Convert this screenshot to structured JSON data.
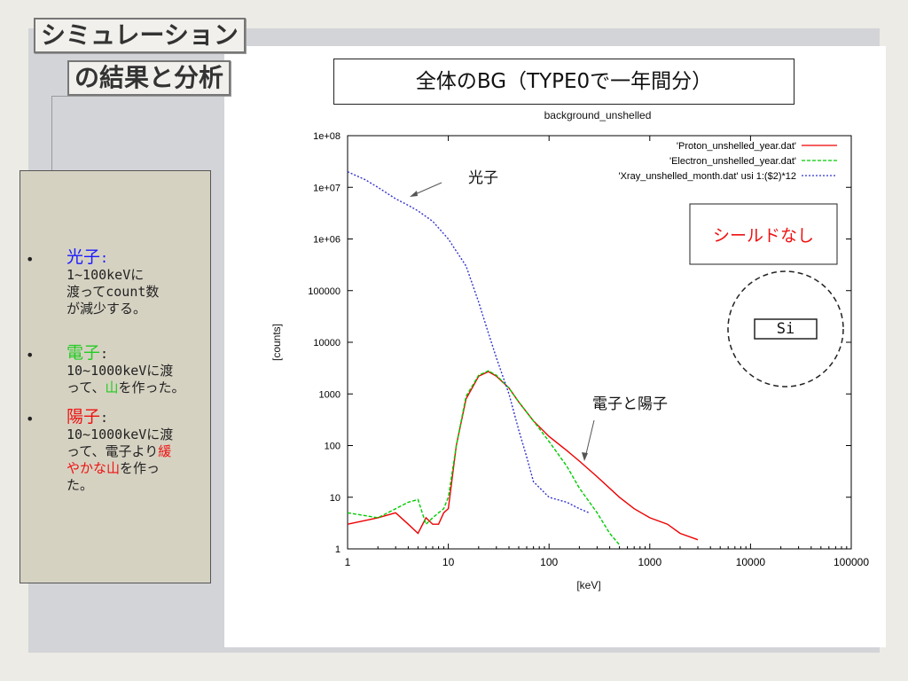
{
  "slide": {
    "title_line1": "シミュレーション",
    "title_line2": "の結果と分析",
    "caption": "全体のBG（TYPE0で一年間分）"
  },
  "notes": [
    {
      "bullet": "•",
      "head": "光子",
      "head_color": "#1a1aff",
      "colon": ":",
      "lines": [
        "1~100keVに",
        "渡ってcount数",
        "が減少する。"
      ]
    },
    {
      "bullet": "•",
      "head": "電子",
      "head_color": "#22cc22",
      "colon": ":",
      "lines": [
        "10~1000keVに渡",
        "って、",
        "山",
        "を作った。"
      ],
      "highlight": "山",
      "highlight_color": "#22cc22"
    },
    {
      "bullet": "•",
      "head": "陽子",
      "head_color": "#ee1111",
      "colon": ":",
      "lines": [
        "10~1000keVに渡",
        "って、電子より",
        "緩",
        "やかな",
        "山",
        "を作っ",
        "た。"
      ],
      "highlight_color": "#ee1111"
    }
  ],
  "annotations": {
    "photon_label": "光子",
    "electron_proton_label": "電子と陽子",
    "shield_label": "シールドなし",
    "si_label": "Si"
  },
  "chart_data": {
    "type": "line",
    "title": "background_unshelled",
    "xlabel": "[keV]",
    "ylabel": "[counts]",
    "xscale": "log",
    "yscale": "log",
    "xlim": [
      1,
      100000
    ],
    "ylim": [
      1,
      100000000
    ],
    "x_ticks": [
      "1",
      "10",
      "100",
      "1000",
      "10000",
      "100000"
    ],
    "y_ticks": [
      "1",
      "10",
      "100",
      "1000",
      "10000",
      "100000",
      "1e+06",
      "1e+07",
      "1e+08"
    ],
    "legend_position": "top-right",
    "series": [
      {
        "name": "'Proton_unshelled_year.dat'",
        "color": "#ee0000",
        "x": [
          1,
          2,
          3,
          4,
          5,
          6,
          7,
          8,
          9,
          10,
          12,
          15,
          20,
          25,
          30,
          40,
          50,
          70,
          100,
          150,
          200,
          300,
          500,
          700,
          1000,
          1500,
          2000,
          3000
        ],
        "y": [
          3,
          4,
          5,
          3,
          2,
          4,
          3,
          3,
          5,
          6,
          100,
          800,
          2200,
          2700,
          2200,
          1300,
          700,
          300,
          150,
          80,
          50,
          25,
          10,
          6,
          4,
          3,
          2,
          1.5
        ]
      },
      {
        "name": "'Electron_unshelled_year.dat'",
        "color": "#00cc00",
        "x": [
          1,
          2,
          3,
          4,
          5,
          6,
          7,
          8,
          9,
          10,
          12,
          15,
          20,
          25,
          30,
          40,
          50,
          70,
          100,
          150,
          200,
          300,
          400,
          500
        ],
        "y": [
          5,
          4,
          6,
          8,
          9,
          3,
          4,
          5,
          6,
          10,
          100,
          900,
          2300,
          2800,
          2300,
          1300,
          700,
          300,
          120,
          40,
          15,
          5,
          2,
          1.2
        ]
      },
      {
        "name": "'Xray_unshelled_month.dat' usi 1:($2)*12",
        "color": "#3333cc",
        "x": [
          1,
          1.5,
          2,
          3,
          4,
          5,
          7,
          10,
          15,
          20,
          25,
          30,
          40,
          50,
          60,
          70,
          100,
          150,
          200,
          250
        ],
        "y": [
          20000000,
          14000000,
          10000000,
          6000000,
          4500000,
          3500000,
          2200000,
          1000000,
          300000,
          60000,
          15000,
          5000,
          1000,
          200,
          60,
          20,
          10,
          8,
          6,
          5
        ]
      }
    ]
  }
}
